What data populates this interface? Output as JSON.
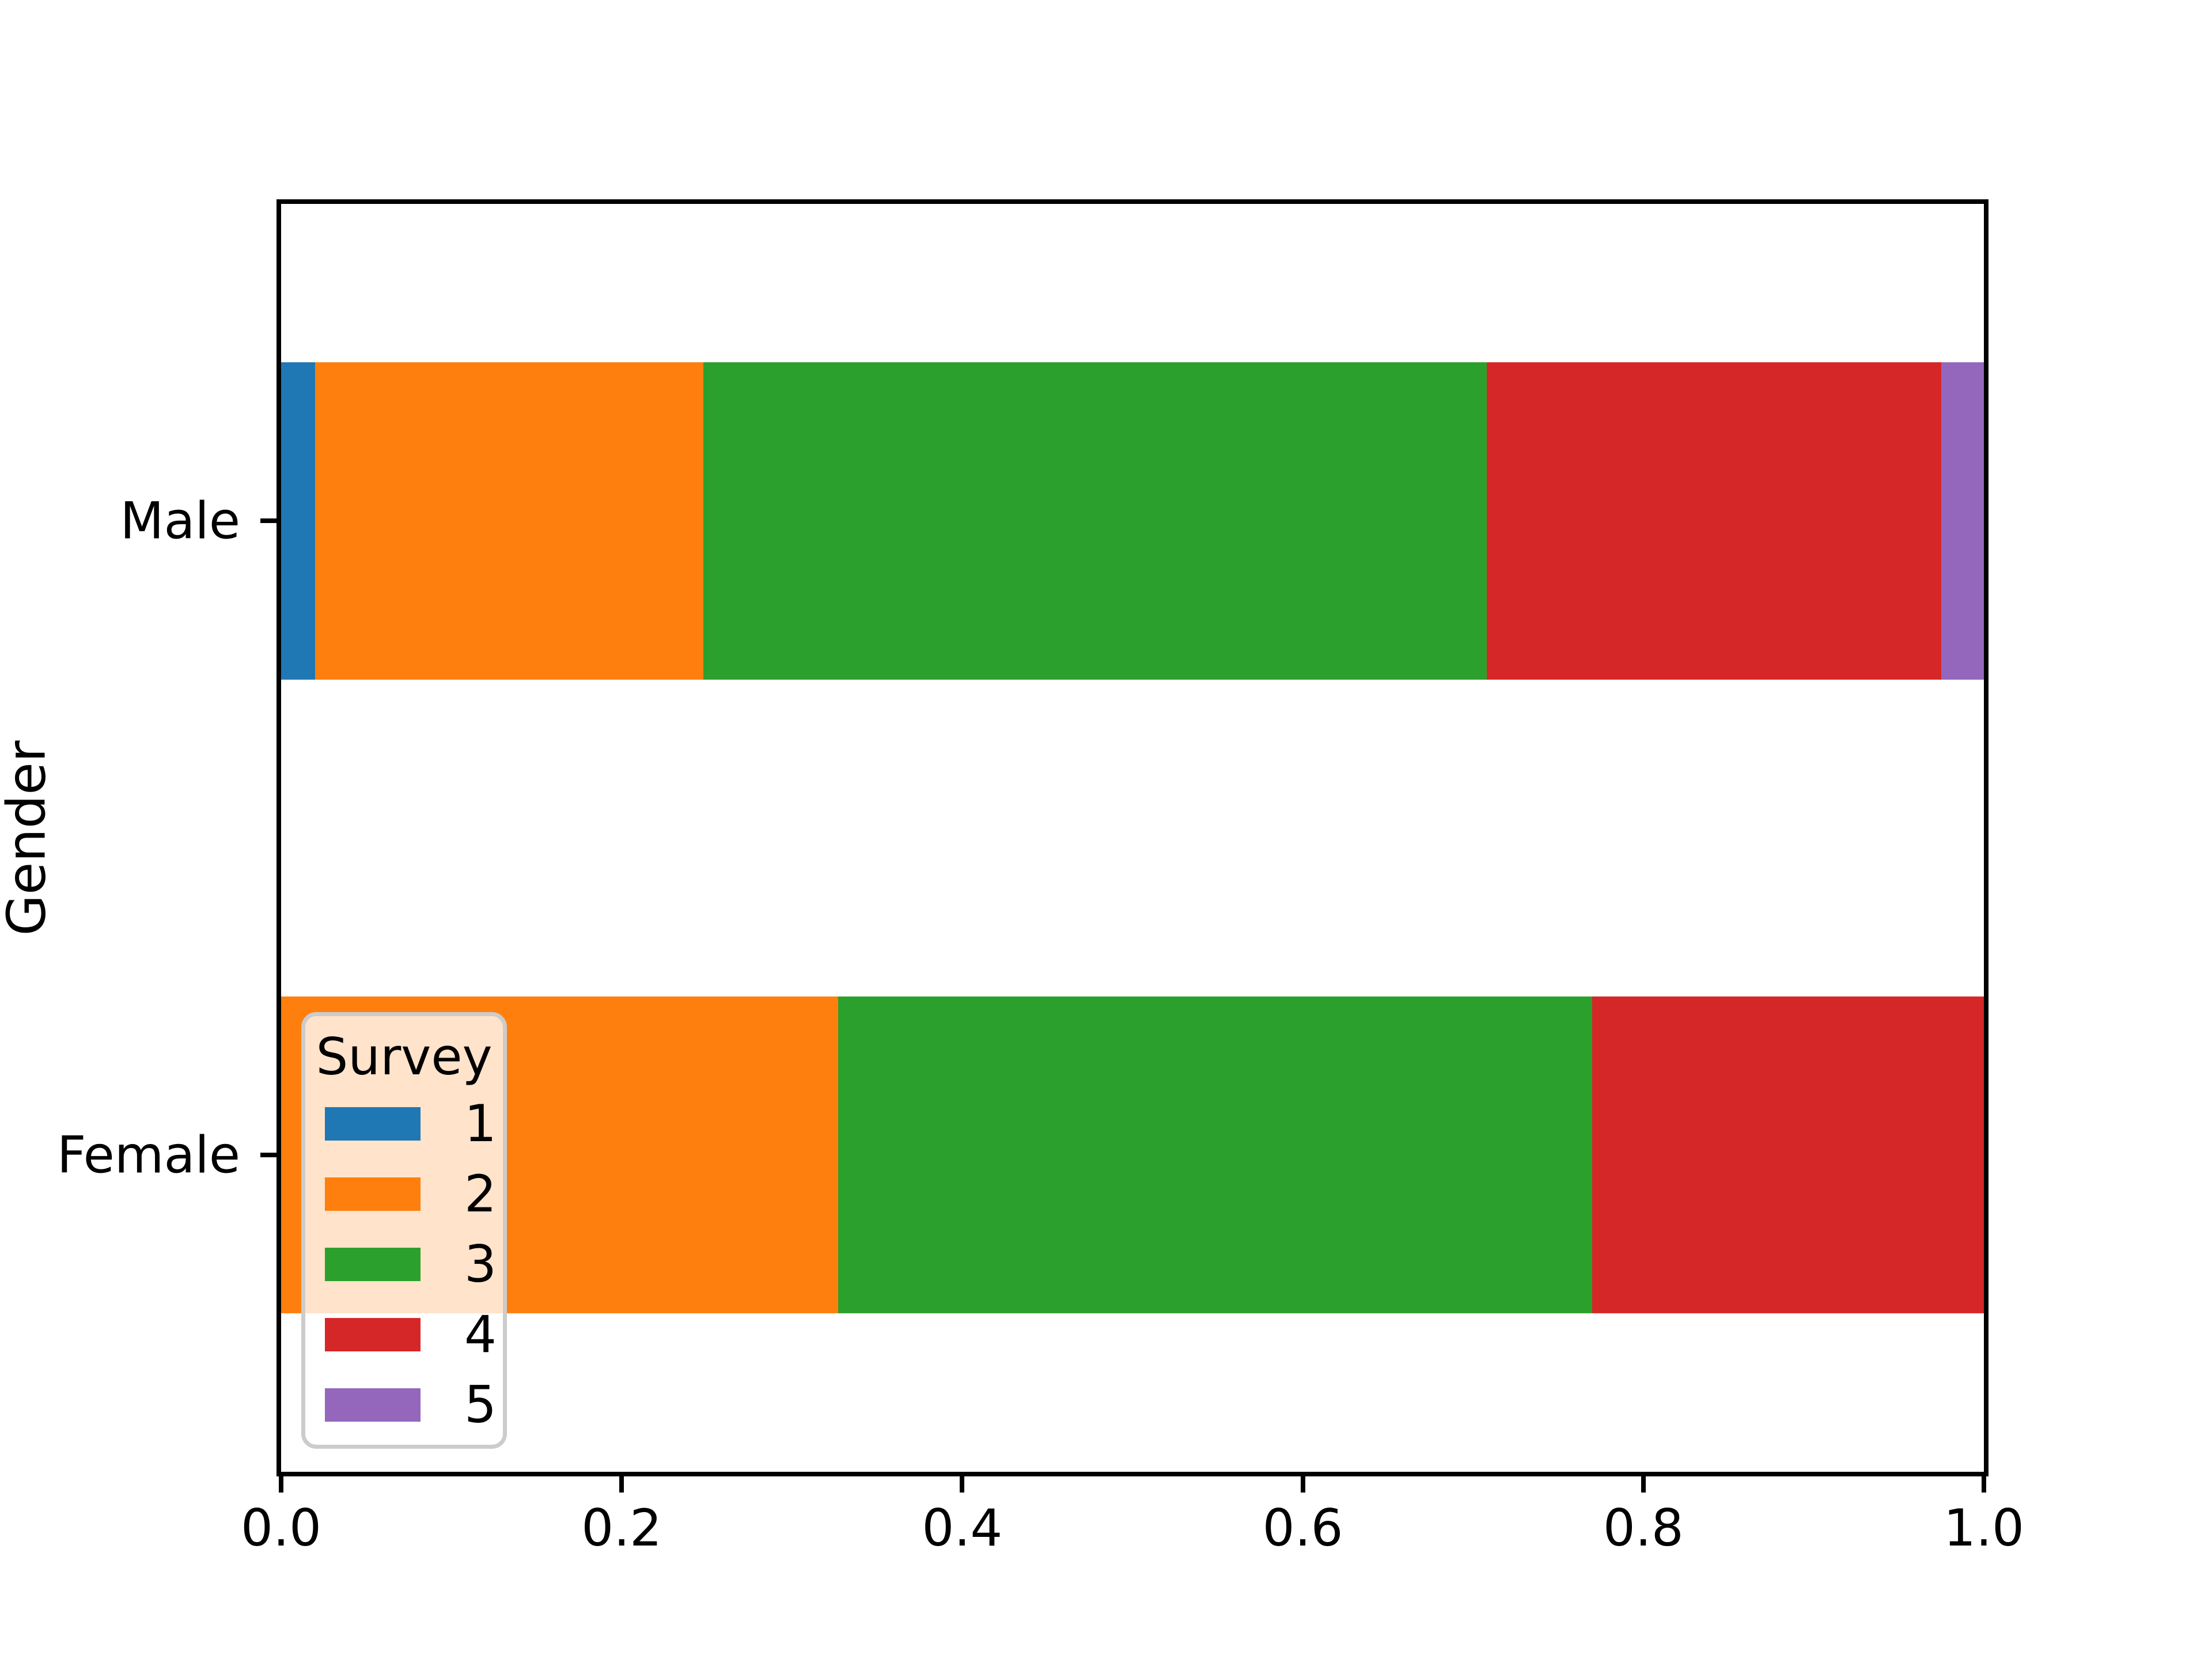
{
  "figure": {
    "background_color": "#ffffff",
    "text_color": "#000000",
    "spine_color": "#000000"
  },
  "chart_data": {
    "type": "bar",
    "orientation": "horizontal",
    "stacked": true,
    "normalized": true,
    "title": "",
    "xlabel": "",
    "ylabel": "Gender",
    "categories": [
      "Male",
      "Female"
    ],
    "series": [
      {
        "name": "1",
        "color": "#1f77b4",
        "values": [
          0.02,
          0.0
        ]
      },
      {
        "name": "2",
        "color": "#ff7f0e",
        "values": [
          0.228,
          0.327
        ]
      },
      {
        "name": "3",
        "color": "#2ca02c",
        "values": [
          0.46,
          0.443
        ]
      },
      {
        "name": "4",
        "color": "#d62728",
        "values": [
          0.267,
          0.23
        ]
      },
      {
        "name": "5",
        "color": "#9467bd",
        "values": [
          0.025,
          0.0
        ]
      }
    ],
    "xlim": [
      0.0,
      1.0
    ],
    "xtick_labels": [
      "0.0",
      "0.2",
      "0.4",
      "0.6",
      "0.8",
      "1.0"
    ],
    "ytick_labels": [
      "Male",
      "Female"
    ],
    "bar_height_fraction": 0.5,
    "grid": false,
    "legend": {
      "title": "Survey",
      "labels": [
        "1",
        "2",
        "3",
        "4",
        "5"
      ],
      "position": "lower-left",
      "border_color": "#cccccc"
    }
  }
}
